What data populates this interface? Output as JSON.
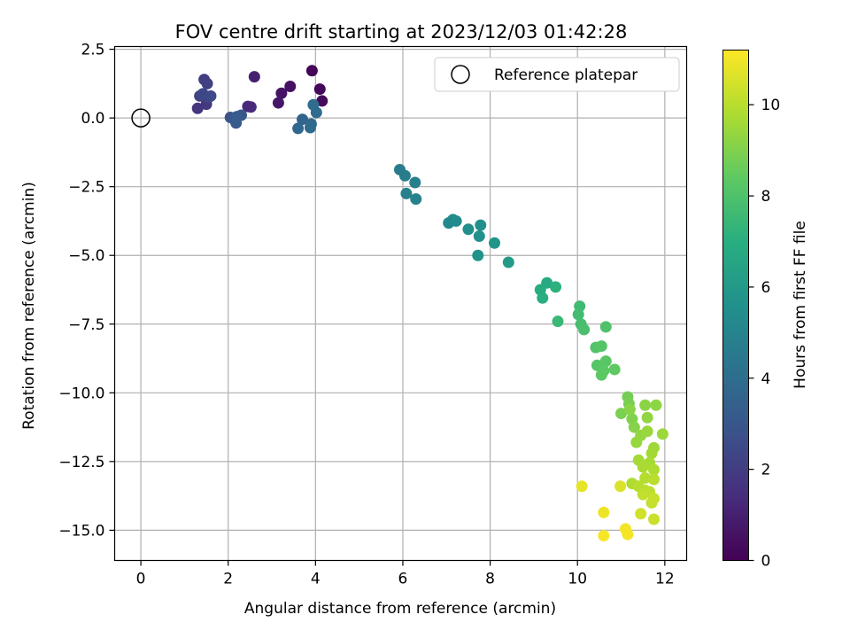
{
  "chart_data": {
    "type": "scatter",
    "title": "FOV centre drift starting at 2023/12/03 01:42:28",
    "xlabel": "Angular distance from reference (arcmin)",
    "ylabel": "Rotation from reference (arcmin)",
    "xlim": [
      -0.6,
      12.5
    ],
    "ylim": [
      -16.1,
      2.6
    ],
    "xticks": [
      0,
      2,
      4,
      6,
      8,
      10,
      12
    ],
    "xtick_labels": [
      "0",
      "2",
      "4",
      "6",
      "8",
      "10",
      "12"
    ],
    "yticks": [
      2.5,
      0.0,
      -2.5,
      -5.0,
      -7.5,
      -10.0,
      -12.5,
      -15.0
    ],
    "ytick_labels": [
      "2.5",
      "0.0",
      "−2.5",
      "−5.0",
      "−7.5",
      "−10.0",
      "−12.5",
      "−15.0"
    ],
    "grid": true,
    "legend": {
      "placement": "top-right",
      "label": "Reference platepar"
    },
    "reference_point": {
      "x": 0,
      "y": 0
    },
    "colorbar": {
      "label": "Hours from first FF file",
      "range": [
        0,
        11.2
      ],
      "ticks": [
        0,
        2,
        4,
        6,
        8,
        10
      ],
      "tick_labels": [
        "0",
        "2",
        "4",
        "6",
        "8",
        "10"
      ],
      "colormap": "viridis"
    },
    "series": [
      {
        "points": [
          {
            "x": 3.92,
            "y": 1.72,
            "c": 0.1
          },
          {
            "x": 4.1,
            "y": 1.05,
            "c": 0.2
          },
          {
            "x": 4.15,
            "y": 0.62,
            "c": 0.3
          },
          {
            "x": 3.42,
            "y": 1.15,
            "c": 0.5
          },
          {
            "x": 3.22,
            "y": 0.9,
            "c": 0.6
          },
          {
            "x": 3.15,
            "y": 0.55,
            "c": 0.7
          },
          {
            "x": 2.6,
            "y": 1.5,
            "c": 1.0
          },
          {
            "x": 2.45,
            "y": 0.42,
            "c": 1.3
          },
          {
            "x": 2.52,
            "y": 0.4,
            "c": 1.35
          },
          {
            "x": 1.3,
            "y": 0.35,
            "c": 1.7
          },
          {
            "x": 1.5,
            "y": 0.5,
            "c": 1.8
          },
          {
            "x": 1.45,
            "y": 1.4,
            "c": 2.0
          },
          {
            "x": 1.52,
            "y": 1.25,
            "c": 2.1
          },
          {
            "x": 1.35,
            "y": 0.8,
            "c": 2.2
          },
          {
            "x": 1.55,
            "y": 0.75,
            "c": 2.3
          },
          {
            "x": 1.42,
            "y": 0.88,
            "c": 2.4
          },
          {
            "x": 1.6,
            "y": 0.8,
            "c": 2.5
          },
          {
            "x": 2.05,
            "y": 0.02,
            "c": 2.9
          },
          {
            "x": 2.3,
            "y": 0.1,
            "c": 3.0
          },
          {
            "x": 2.18,
            "y": -0.18,
            "c": 3.1
          },
          {
            "x": 2.2,
            "y": 0.05,
            "c": 3.2
          },
          {
            "x": 3.7,
            "y": -0.05,
            "c": 3.6
          },
          {
            "x": 3.6,
            "y": -0.38,
            "c": 3.7
          },
          {
            "x": 3.9,
            "y": -0.22,
            "c": 3.8
          },
          {
            "x": 3.88,
            "y": -0.35,
            "c": 3.9
          },
          {
            "x": 3.95,
            "y": 0.48,
            "c": 3.95
          },
          {
            "x": 4.02,
            "y": 0.2,
            "c": 4.0
          },
          {
            "x": 5.93,
            "y": -1.88,
            "c": 4.6
          },
          {
            "x": 6.05,
            "y": -2.1,
            "c": 4.7
          },
          {
            "x": 6.28,
            "y": -2.35,
            "c": 4.8
          },
          {
            "x": 6.08,
            "y": -2.75,
            "c": 4.85
          },
          {
            "x": 6.3,
            "y": -2.95,
            "c": 4.9
          },
          {
            "x": 7.05,
            "y": -3.82,
            "c": 5.2
          },
          {
            "x": 7.15,
            "y": -3.7,
            "c": 5.3
          },
          {
            "x": 7.22,
            "y": -3.75,
            "c": 5.35
          },
          {
            "x": 7.5,
            "y": -4.05,
            "c": 5.5
          },
          {
            "x": 7.78,
            "y": -3.9,
            "c": 5.55
          },
          {
            "x": 7.75,
            "y": -4.3,
            "c": 5.6
          },
          {
            "x": 7.72,
            "y": -5.0,
            "c": 5.7
          },
          {
            "x": 8.1,
            "y": -4.55,
            "c": 5.8
          },
          {
            "x": 8.42,
            "y": -5.25,
            "c": 6.1
          },
          {
            "x": 9.3,
            "y": -6.0,
            "c": 6.8
          },
          {
            "x": 9.15,
            "y": -6.25,
            "c": 6.9
          },
          {
            "x": 9.2,
            "y": -6.55,
            "c": 7.0
          },
          {
            "x": 9.5,
            "y": -6.15,
            "c": 7.1
          },
          {
            "x": 9.55,
            "y": -7.4,
            "c": 7.5
          },
          {
            "x": 10.05,
            "y": -6.85,
            "c": 7.6
          },
          {
            "x": 10.02,
            "y": -7.15,
            "c": 7.7
          },
          {
            "x": 10.08,
            "y": -7.5,
            "c": 7.8
          },
          {
            "x": 10.15,
            "y": -7.7,
            "c": 7.9
          },
          {
            "x": 10.65,
            "y": -7.6,
            "c": 8.0
          },
          {
            "x": 10.42,
            "y": -8.35,
            "c": 8.1
          },
          {
            "x": 10.55,
            "y": -8.3,
            "c": 8.15
          },
          {
            "x": 10.45,
            "y": -9.0,
            "c": 8.2
          },
          {
            "x": 10.65,
            "y": -8.85,
            "c": 8.25
          },
          {
            "x": 10.6,
            "y": -9.2,
            "c": 8.3
          },
          {
            "x": 10.55,
            "y": -9.35,
            "c": 8.35
          },
          {
            "x": 10.85,
            "y": -9.15,
            "c": 8.4
          },
          {
            "x": 11.15,
            "y": -10.15,
            "c": 8.8
          },
          {
            "x": 11.18,
            "y": -10.4,
            "c": 8.85
          },
          {
            "x": 11.0,
            "y": -10.75,
            "c": 8.9
          },
          {
            "x": 11.25,
            "y": -10.95,
            "c": 9.0
          },
          {
            "x": 11.3,
            "y": -11.25,
            "c": 9.1
          },
          {
            "x": 11.2,
            "y": -10.6,
            "c": 9.15
          },
          {
            "x": 11.55,
            "y": -10.45,
            "c": 9.2
          },
          {
            "x": 11.8,
            "y": -10.45,
            "c": 9.25
          },
          {
            "x": 11.6,
            "y": -10.9,
            "c": 9.3
          },
          {
            "x": 11.45,
            "y": -11.55,
            "c": 9.35
          },
          {
            "x": 11.35,
            "y": -11.8,
            "c": 9.4
          },
          {
            "x": 11.6,
            "y": -11.4,
            "c": 9.45
          },
          {
            "x": 11.95,
            "y": -11.5,
            "c": 9.5
          },
          {
            "x": 11.75,
            "y": -12.0,
            "c": 9.55
          },
          {
            "x": 11.7,
            "y": -12.2,
            "c": 9.6
          },
          {
            "x": 11.4,
            "y": -12.45,
            "c": 9.65
          },
          {
            "x": 11.65,
            "y": -12.55,
            "c": 9.7
          },
          {
            "x": 11.5,
            "y": -12.7,
            "c": 9.75
          },
          {
            "x": 11.75,
            "y": -12.8,
            "c": 9.8
          },
          {
            "x": 11.25,
            "y": -13.3,
            "c": 9.85
          },
          {
            "x": 11.55,
            "y": -13.1,
            "c": 9.9
          },
          {
            "x": 11.4,
            "y": -13.4,
            "c": 9.95
          },
          {
            "x": 11.75,
            "y": -13.15,
            "c": 10.0
          },
          {
            "x": 11.55,
            "y": -13.55,
            "c": 10.05
          },
          {
            "x": 11.65,
            "y": -13.6,
            "c": 10.1
          },
          {
            "x": 11.5,
            "y": -13.7,
            "c": 10.15
          },
          {
            "x": 11.7,
            "y": -14.0,
            "c": 10.2
          },
          {
            "x": 11.75,
            "y": -13.85,
            "c": 10.25
          },
          {
            "x": 11.75,
            "y": -14.6,
            "c": 10.3
          },
          {
            "x": 11.45,
            "y": -14.4,
            "c": 10.4
          },
          {
            "x": 10.98,
            "y": -13.4,
            "c": 10.6
          },
          {
            "x": 10.1,
            "y": -13.4,
            "c": 10.8
          },
          {
            "x": 10.6,
            "y": -14.35,
            "c": 10.9
          },
          {
            "x": 11.1,
            "y": -14.95,
            "c": 11.0
          },
          {
            "x": 11.15,
            "y": -15.15,
            "c": 11.05
          },
          {
            "x": 10.6,
            "y": -15.2,
            "c": 11.1
          }
        ]
      }
    ]
  }
}
